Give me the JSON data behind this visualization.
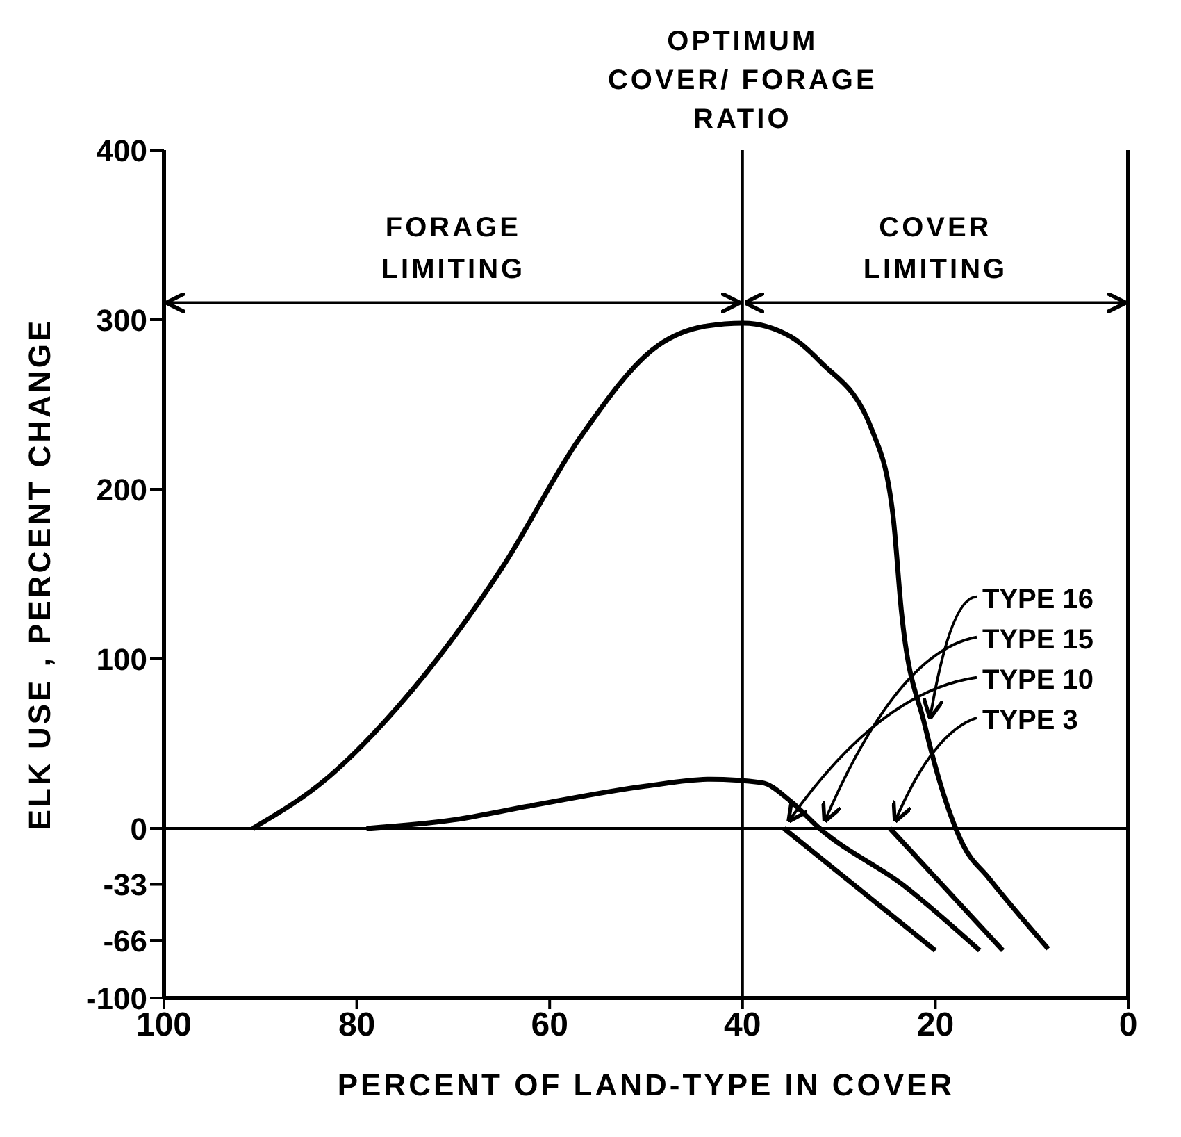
{
  "chart_data": {
    "type": "line",
    "xlabel": "PERCENT OF LAND-TYPE IN COVER",
    "ylabel": "ELK USE , PERCENT CHANGE",
    "xlim": [
      100,
      0
    ],
    "xticks": [
      100,
      80,
      60,
      40,
      20,
      0
    ],
    "ylim": [
      -100,
      400
    ],
    "yticks": [
      400,
      300,
      200,
      100,
      0,
      -33,
      -66,
      -100
    ],
    "series": [
      {
        "name": "TYPE 16",
        "color": "#000000",
        "x": [
          8.3,
          14.5,
          17.1,
          21.1,
          23.5,
          24.4,
          26.5,
          31.9,
          35,
          39.9,
          44,
          48.7,
          56.9,
          64.9,
          75.7,
          83,
          90.8
        ],
        "values": [
          -71,
          -29,
          -10,
          61,
          127,
          185,
          234,
          275,
          290,
          298,
          296,
          285,
          230,
          154,
          72,
          30,
          0
        ]
      },
      {
        "name": "TYPE 15",
        "color": "#000000",
        "x": [
          15.4,
          23.2,
          32,
          35,
          38,
          43.3,
          50,
          62.3,
          70,
          79
        ],
        "values": [
          -72,
          -34,
          0,
          16,
          27,
          29,
          25,
          13,
          5,
          0
        ]
      },
      {
        "name": "TYPE 10",
        "color": "#000000",
        "x": [
          20,
          35.7
        ],
        "values": [
          -72,
          0
        ]
      },
      {
        "name": "TYPE 3",
        "color": "#000000",
        "x": [
          13,
          24.7
        ],
        "values": [
          -72,
          0
        ]
      }
    ],
    "ref_lines": [
      {
        "axis": "x",
        "value": 40,
        "label": "OPTIMUM COVER/ FORAGE RATIO"
      },
      {
        "axis": "y",
        "value": 0
      }
    ],
    "annotations": [
      "FORAGE LIMITING",
      "COVER LIMITING"
    ],
    "marker": "none",
    "line_style": "solid"
  }
}
